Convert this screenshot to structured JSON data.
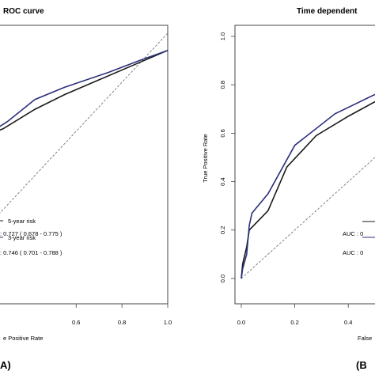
{
  "panels": [
    {
      "id": "A",
      "title_fragment": "ROC curve",
      "xlabel_fragment": "e Positive Rate",
      "x_ticks": [
        "0.6",
        "0.8",
        "1.0"
      ],
      "legend": [
        {
          "label": "5-year risk",
          "auc": ": 0.727 ( 0.678 - 0.775 )",
          "color": "#1a1a1a"
        },
        {
          "label": "3-year risk",
          "auc": ": 0.746 ( 0.701 - 0.788 )",
          "color": "#2b2f7a"
        }
      ],
      "panel_tag": "A)"
    },
    {
      "id": "B",
      "title_fragment": "Time dependent",
      "xlabel_fragment": "False",
      "ylabel": "True Positive Rate",
      "y_ticks": [
        "0.0",
        "0.2",
        "0.4",
        "0.6",
        "0.8",
        "1.0"
      ],
      "x_ticks": [
        "0.0",
        "0.2",
        "0.4"
      ],
      "legend": [
        {
          "label": "",
          "auc": "AUC : 0",
          "color": "#1a1a1a"
        },
        {
          "label": "",
          "auc": "AUC : 0",
          "color": "#2b2f7a"
        }
      ],
      "panel_tag": "(B"
    }
  ],
  "chart_data": [
    {
      "type": "line",
      "title": "ROC curve",
      "xlabel": "e Positive Rate",
      "xlim": [
        0.25,
        1.0
      ],
      "ylim": [
        0.0,
        1.0
      ],
      "diagonal_reference": true,
      "series": [
        {
          "name": "5-year risk",
          "color": "#1a1a1a",
          "x": [
            0.25,
            0.28,
            0.42,
            0.55,
            0.7,
            0.85,
            1.0
          ],
          "y": [
            0.6,
            0.61,
            0.69,
            0.75,
            0.81,
            0.87,
            0.93
          ]
        },
        {
          "name": "3-year risk",
          "color": "#2b2f7a",
          "x": [
            0.25,
            0.3,
            0.42,
            0.55,
            0.74,
            0.88,
            1.0
          ],
          "y": [
            0.61,
            0.64,
            0.73,
            0.78,
            0.84,
            0.89,
            0.93
          ]
        }
      ]
    },
    {
      "type": "line",
      "title": "Time dependent",
      "xlabel": "False",
      "ylabel": "True Positive Rate",
      "xlim": [
        0.0,
        0.5
      ],
      "ylim": [
        0.0,
        1.0
      ],
      "diagonal_reference": true,
      "series": [
        {
          "name": "",
          "color": "#1a1a1a",
          "x": [
            0.0,
            0.005,
            0.02,
            0.03,
            0.1,
            0.17,
            0.28,
            0.4,
            0.5
          ],
          "y": [
            0.0,
            0.06,
            0.13,
            0.2,
            0.28,
            0.46,
            0.59,
            0.67,
            0.73
          ]
        },
        {
          "name": "",
          "color": "#2b2f7a",
          "x": [
            0.0,
            0.005,
            0.02,
            0.03,
            0.04,
            0.1,
            0.2,
            0.35,
            0.5
          ],
          "y": [
            0.0,
            0.04,
            0.1,
            0.22,
            0.27,
            0.35,
            0.55,
            0.68,
            0.76
          ]
        }
      ]
    }
  ]
}
